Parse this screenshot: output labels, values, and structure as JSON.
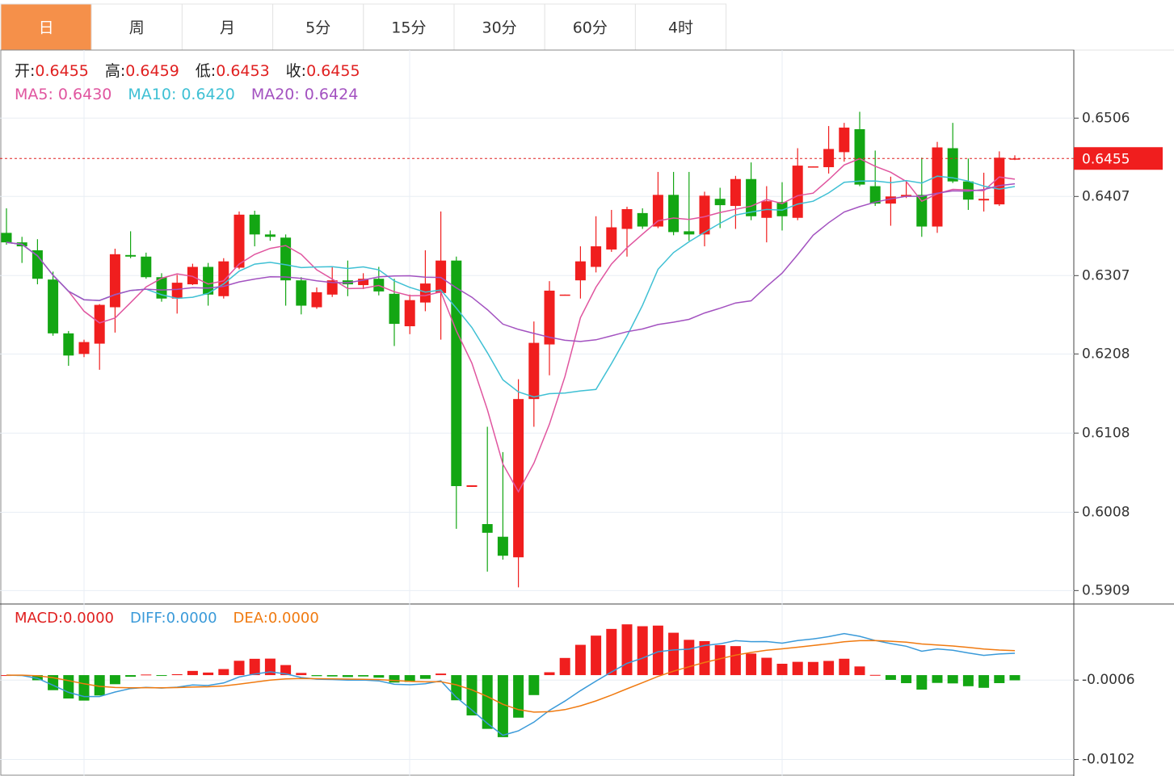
{
  "tabs": [
    "日",
    "周",
    "月",
    "5分",
    "15分",
    "30分",
    "60分",
    "4时"
  ],
  "active_tab": 0,
  "chart_data": {
    "type": "candlestick",
    "up_color": "#f01e1e",
    "down_color": "#13a613",
    "open": [
      0.6361,
      0.6349,
      0.6339,
      0.6302,
      0.6234,
      0.6208,
      0.6221,
      0.6267,
      0.6333,
      0.6331,
      0.6305,
      0.6278,
      0.6296,
      0.6318,
      0.6281,
      0.6317,
      0.6384,
      0.6359,
      0.6355,
      0.6301,
      0.6267,
      0.6283,
      0.6301,
      0.6295,
      0.6303,
      0.6284,
      0.6243,
      0.6273,
      0.6285,
      0.6326,
      0.604,
      0.5993,
      0.5977,
      0.5951,
      0.6151,
      0.622,
      0.6282,
      0.6301,
      0.6318,
      0.634,
      0.6366,
      0.6386,
      0.6369,
      0.6409,
      0.6363,
      0.6359,
      0.6404,
      0.6395,
      0.6429,
      0.638,
      0.64,
      0.638,
      0.6444,
      0.6444,
      0.6463,
      0.6492,
      0.642,
      0.6398,
      0.6407,
      0.6409,
      0.6369,
      0.6468,
      0.6426,
      0.6402,
      0.6397,
      0.6455
    ],
    "high": [
      0.6392,
      0.6356,
      0.6353,
      0.6312,
      0.6237,
      0.6226,
      0.6271,
      0.6341,
      0.6363,
      0.6336,
      0.631,
      0.6308,
      0.6322,
      0.6323,
      0.6329,
      0.6388,
      0.6389,
      0.6364,
      0.6359,
      0.6305,
      0.6292,
      0.6318,
      0.6326,
      0.631,
      0.6318,
      0.6303,
      0.6283,
      0.6339,
      0.6388,
      0.6331,
      0.6042,
      0.6116,
      0.6084,
      0.6176,
      0.6249,
      0.63,
      0.6283,
      0.6344,
      0.6382,
      0.639,
      0.6394,
      0.6392,
      0.6438,
      0.6438,
      0.6438,
      0.6413,
      0.6418,
      0.6433,
      0.645,
      0.642,
      0.6425,
      0.6468,
      0.6445,
      0.6496,
      0.65,
      0.6514,
      0.6465,
      0.6432,
      0.6427,
      0.6456,
      0.6476,
      0.65,
      0.6455,
      0.6437,
      0.6464,
      0.6459
    ],
    "low": [
      0.6346,
      0.6323,
      0.6296,
      0.6231,
      0.6193,
      0.6204,
      0.6188,
      0.6235,
      0.6329,
      0.6303,
      0.6274,
      0.6259,
      0.6295,
      0.6269,
      0.6278,
      0.6315,
      0.6344,
      0.6351,
      0.6269,
      0.6258,
      0.6265,
      0.628,
      0.6281,
      0.629,
      0.6282,
      0.6218,
      0.6233,
      0.6262,
      0.6226,
      0.5987,
      0.604,
      0.5933,
      0.5948,
      0.5913,
      0.6116,
      0.6181,
      0.6282,
      0.6278,
      0.6311,
      0.6337,
      0.6331,
      0.6366,
      0.6367,
      0.6358,
      0.6351,
      0.6344,
      0.6367,
      0.6366,
      0.6377,
      0.6349,
      0.6364,
      0.6377,
      0.6444,
      0.6436,
      0.6451,
      0.642,
      0.6395,
      0.637,
      0.6405,
      0.6356,
      0.6361,
      0.6424,
      0.639,
      0.6388,
      0.6395,
      0.6453
    ],
    "close": [
      0.6349,
      0.6344,
      0.6303,
      0.6234,
      0.6206,
      0.6223,
      0.627,
      0.6334,
      0.6331,
      0.6305,
      0.6278,
      0.6298,
      0.6318,
      0.6283,
      0.6325,
      0.6384,
      0.6359,
      0.6356,
      0.6301,
      0.6269,
      0.6286,
      0.6301,
      0.6296,
      0.6303,
      0.6287,
      0.6246,
      0.6276,
      0.6297,
      0.6326,
      0.6041,
      0.6042,
      0.5982,
      0.5953,
      0.6151,
      0.6222,
      0.6288,
      0.6283,
      0.6325,
      0.6344,
      0.6368,
      0.6391,
      0.6369,
      0.6409,
      0.6362,
      0.6359,
      0.6408,
      0.6396,
      0.6429,
      0.6382,
      0.6401,
      0.6382,
      0.6446,
      0.6445,
      0.6467,
      0.6494,
      0.6422,
      0.6398,
      0.6407,
      0.6409,
      0.6369,
      0.6469,
      0.6426,
      0.6403,
      0.6404,
      0.6456,
      0.6455
    ],
    "ylim": [
      0.5892,
      0.6592
    ],
    "yticks": [
      0.6506,
      0.6407,
      0.6307,
      0.6208,
      0.6108,
      0.6008,
      0.5909
    ],
    "grid": true,
    "info": [
      {
        "label": "开:",
        "value": 0.6455
      },
      {
        "label": "高:",
        "value": 0.6459
      },
      {
        "label": "低:",
        "value": 0.6453
      },
      {
        "label": "收:",
        "value": 0.6455
      }
    ],
    "ma": [
      {
        "name": "MA5:",
        "color": "#e0559f",
        "value": {
          "value": 0.643,
          "label": "0.6430"
        }
      },
      {
        "name": "MA10:",
        "color": "#3fc0d4",
        "value": {
          "value": 0.642,
          "label": "0.6420"
        }
      },
      {
        "name": "MA20:",
        "color": "#a352c0",
        "value": 0.6424
      }
    ],
    "macd": {
      "y2lim": [
        -0.0122,
        0.0086
      ],
      "y2ticks": [
        -0.0006,
        -0.0102
      ],
      "lines": [
        {
          "name": "MACD:",
          "color": "#e02020",
          "value": {
            "value": 0,
            "label": "0.0000"
          }
        },
        {
          "name": "DIFF:",
          "color": "#3a9ad9",
          "value": {
            "value": 0,
            "label": "0.0000"
          }
        },
        {
          "name": "DEA:",
          "color": "#f07a10",
          "value": {
            "value": 0,
            "label": "0.0000"
          }
        }
      ]
    }
  }
}
